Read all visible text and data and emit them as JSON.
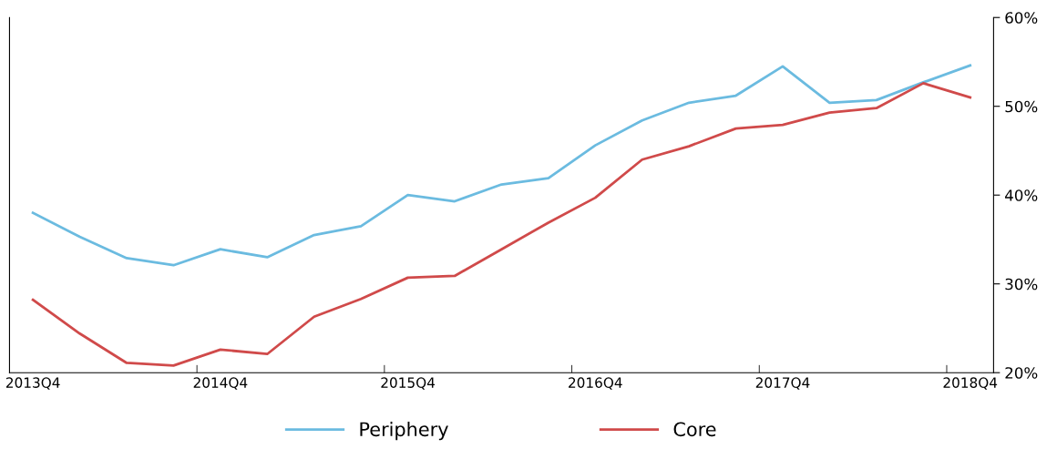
{
  "chart_data": {
    "type": "line",
    "categories": [
      "2013Q4",
      null,
      null,
      null,
      "2014Q4",
      null,
      null,
      null,
      "2015Q4",
      null,
      null,
      null,
      "2016Q4",
      null,
      null,
      null,
      "2017Q4",
      null,
      null,
      null,
      "2018Q4"
    ],
    "series": [
      {
        "name": "Periphery",
        "color": "#6bbbe0",
        "values": [
          38.0,
          35.3,
          32.9,
          32.1,
          33.9,
          33.0,
          35.5,
          36.5,
          40.0,
          39.3,
          41.2,
          41.9,
          45.6,
          48.4,
          50.4,
          51.2,
          54.5,
          50.4,
          50.7,
          52.7,
          54.6
        ]
      },
      {
        "name": "Core",
        "color": "#d04a4a",
        "values": [
          28.2,
          24.4,
          21.1,
          20.8,
          22.6,
          22.1,
          26.3,
          28.3,
          30.7,
          30.9,
          33.9,
          36.9,
          39.7,
          44.0,
          45.5,
          47.5,
          47.9,
          49.3,
          49.8,
          52.6,
          51.0
        ]
      }
    ],
    "ylim": [
      20,
      60
    ],
    "yticks": [
      {
        "value": 20,
        "label": "20%"
      },
      {
        "value": 30,
        "label": "30%"
      },
      {
        "value": 40,
        "label": "40%"
      },
      {
        "value": 50,
        "label": "50%"
      },
      {
        "value": 60,
        "label": "60%"
      }
    ],
    "legend": "bottom",
    "grid": false,
    "marker": "none",
    "line_style": "solid"
  }
}
